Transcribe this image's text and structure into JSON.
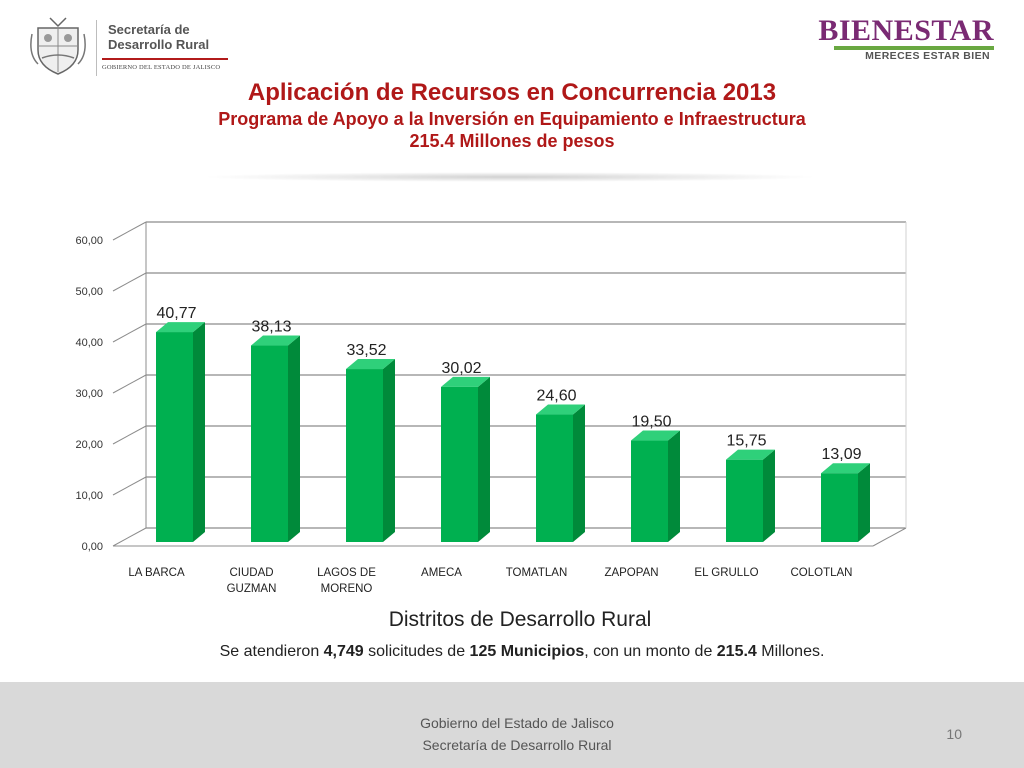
{
  "header": {
    "dept_line1": "Secretaría de",
    "dept_line2": "Desarrollo Rural",
    "gov_label": "GOBIERNO DEL ESTADO DE JALISCO",
    "brand": "BIENESTAR",
    "tagline": "MERECES ESTAR BIEN"
  },
  "title": {
    "main": "Aplicación de Recursos en Concurrencia 2013",
    "sub": "Programa de Apoyo a la Inversión en Equipamiento e Infraestructura",
    "amount": "215.4 Millones de pesos"
  },
  "chart_data": {
    "type": "bar",
    "title": "",
    "xlabel": "Distritos de Desarrollo Rural",
    "ylabel": "",
    "categories": [
      "LA BARCA",
      "CIUDAD GUZMAN",
      "LAGOS DE MORENO",
      "AMECA",
      "TOMATLAN",
      "ZAPOPAN",
      "EL GRULLO",
      "COLOTLAN"
    ],
    "category_lines": [
      [
        "LA BARCA"
      ],
      [
        "CIUDAD",
        "GUZMAN"
      ],
      [
        "LAGOS DE",
        "MORENO"
      ],
      [
        "AMECA"
      ],
      [
        "TOMATLAN"
      ],
      [
        "ZAPOPAN"
      ],
      [
        "EL GRULLO"
      ],
      [
        "COLOTLAN"
      ]
    ],
    "values": [
      40.77,
      38.13,
      33.52,
      30.02,
      24.6,
      19.5,
      15.75,
      13.09
    ],
    "data_labels": [
      "40,77",
      "38,13",
      "33,52",
      "30,02",
      "24,60",
      "19,50",
      "15,75",
      "13,09"
    ],
    "yticks": [
      "0,00",
      "10,00",
      "20,00",
      "30,00",
      "40,00",
      "50,00",
      "60,00"
    ],
    "ylim": [
      0,
      60
    ],
    "grid": true,
    "legend": "none",
    "colors": {
      "bar_front": "#00b050",
      "bar_side": "#008a3a",
      "bar_top": "#2fd07a",
      "grid": "#8c8c8c"
    }
  },
  "summary": {
    "prefix": "Se atendieron ",
    "solicitudes": "4,749",
    "mid1": " solicitudes  de ",
    "municipios": "125 Municipios",
    "mid2": ",  con un monto de ",
    "monto": "215.4",
    "suffix": " Millones."
  },
  "footer": {
    "line1": "Gobierno del Estado de Jalisco",
    "line2": "Secretaría de Desarrollo Rural",
    "page_number": "10"
  }
}
